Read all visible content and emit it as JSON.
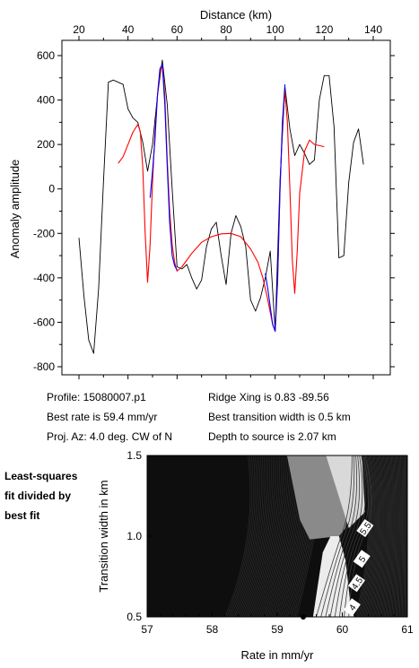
{
  "chart_data": [
    {
      "type": "line",
      "xlabel": "Distance (km)",
      "ylabel": "Anomaly amplitude",
      "xlim": [
        20,
        140
      ],
      "ylim": [
        -800,
        600
      ],
      "xticks": [
        20,
        40,
        60,
        80,
        100,
        120,
        140
      ],
      "yticks": [
        -800,
        -600,
        -400,
        -200,
        0,
        200,
        400,
        600
      ],
      "xtick_labels": [
        "20",
        "40",
        "60",
        "80",
        "100",
        "120",
        "140"
      ],
      "ytick_labels": [
        "-800",
        "-600",
        "-400",
        "-200",
        "0",
        "200",
        "400",
        "600"
      ],
      "grid": false,
      "series": [
        {
          "color": "#000000",
          "x": [
            20,
            22,
            24,
            26,
            28,
            30,
            32,
            34,
            36,
            38,
            40,
            42,
            44,
            46,
            48,
            50,
            52,
            54,
            56,
            58,
            60,
            62,
            64,
            66,
            68,
            70,
            72,
            74,
            76,
            78,
            80,
            82,
            84,
            86,
            88,
            90,
            92,
            94,
            96,
            98,
            100,
            102,
            104,
            106,
            108,
            110,
            112,
            114,
            116,
            118,
            120,
            122,
            124,
            126,
            128,
            130,
            132,
            134,
            136
          ],
          "y": [
            -220,
            -480,
            -680,
            -740,
            -450,
            30,
            480,
            490,
            480,
            470,
            360,
            320,
            300,
            210,
            80,
            200,
            420,
            580,
            380,
            0,
            -350,
            -360,
            -340,
            -400,
            -450,
            -410,
            -260,
            -180,
            -150,
            -300,
            -430,
            -200,
            -120,
            -170,
            -260,
            -500,
            -550,
            -490,
            -400,
            -280,
            -640,
            40,
            460,
            270,
            150,
            200,
            160,
            110,
            130,
            400,
            510,
            510,
            280,
            -310,
            -300,
            30,
            210,
            270,
            110
          ]
        },
        {
          "color": "#ff0000",
          "x": [
            36,
            38,
            40,
            42,
            44,
            45,
            46,
            47,
            48,
            49,
            50,
            51,
            52,
            53,
            54,
            55,
            56,
            57,
            58,
            59,
            60,
            62,
            64,
            66,
            70,
            74,
            78,
            82,
            86,
            90,
            93,
            95,
            97,
            99,
            100,
            101,
            102,
            103,
            104,
            105,
            106,
            107,
            108,
            109,
            110,
            112,
            114,
            116,
            118,
            120
          ],
          "y": [
            115,
            145,
            200,
            255,
            290,
            260,
            100,
            -200,
            -420,
            -250,
            30,
            250,
            420,
            520,
            560,
            420,
            130,
            -100,
            -250,
            -330,
            -370,
            -350,
            -320,
            -290,
            -240,
            -215,
            -202,
            -200,
            -215,
            -270,
            -330,
            -400,
            -500,
            -610,
            -640,
            -420,
            0,
            300,
            440,
            300,
            0,
            -320,
            -470,
            -280,
            -20,
            170,
            220,
            200,
            195,
            190
          ]
        },
        {
          "color": "#0000ff",
          "x": [
            49,
            50,
            51,
            52,
            53,
            54,
            55,
            56,
            57,
            58,
            59,
            60,
            96,
            97,
            98,
            99,
            100,
            101,
            102,
            103,
            104
          ],
          "y": [
            -40,
            80,
            220,
            420,
            540,
            560,
            380,
            100,
            -150,
            -300,
            -345,
            -365,
            -380,
            -450,
            -530,
            -610,
            -640,
            -400,
            0,
            310,
            470
          ],
          "gaps_after_index": [
            11
          ]
        }
      ]
    },
    {
      "type": "contour",
      "xlabel": "Rate in mm/yr",
      "ylabel": "Transition width in km",
      "xlim": [
        57,
        61
      ],
      "ylim": [
        0.5,
        1.5
      ],
      "xticks": [
        57,
        58,
        59,
        60,
        61
      ],
      "yticks": [
        0.5,
        1.0,
        1.5
      ],
      "xtick_labels": [
        "57",
        "58",
        "59",
        "60",
        "61"
      ],
      "ytick_labels": [
        "0.5",
        "1.0",
        "1.5"
      ],
      "contour_labels": [
        {
          "text": "5.5",
          "x": 60.35,
          "y": 1.05
        },
        {
          "text": "5",
          "x": 60.3,
          "y": 0.86
        },
        {
          "text": "4.5",
          "x": 60.22,
          "y": 0.71
        },
        {
          "text": "4",
          "x": 60.15,
          "y": 0.56
        }
      ],
      "best_fit_point": {
        "x": 59.4,
        "y": 0.5
      }
    }
  ],
  "profile_info": {
    "profile": "Profile: 15080007.p1",
    "best_rate": "Best rate is 59.4 mm/yr",
    "proj_az": "Proj. Az: 4.0 deg. CW of N",
    "ridge_xing": "Ridge Xing is 0.83 -89.56",
    "best_transition": "Best transition width is 0.5 km",
    "depth": "Depth to source is   2.07 km"
  },
  "side_note": {
    "line1": "Least-squares",
    "line2": "fit divided by",
    "line3": "best fit"
  }
}
